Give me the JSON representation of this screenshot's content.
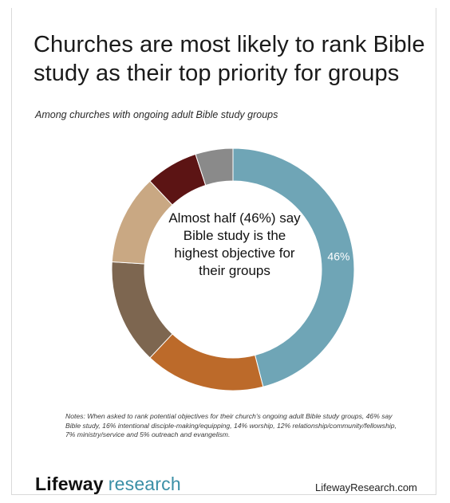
{
  "header": {
    "title": "Churches are most likely to rank Bible study as their top priority for groups",
    "subtitle": "Among churches with ongoing adult Bible study groups"
  },
  "chart_data": {
    "type": "pie",
    "style": "donut",
    "title": "Churches are most likely to rank Bible study as their top priority for groups",
    "subtitle": "Among churches with ongoing adult Bible study groups",
    "categories": [
      "Bible study",
      "intentional disciple-making/equipping",
      "worship",
      "relationship/community/fellowship",
      "ministry/service",
      "outreach and evangelism"
    ],
    "values": [
      46,
      16,
      14,
      12,
      7,
      5
    ],
    "colors": [
      "#6fa5b6",
      "#bc6a2a",
      "#7d6650",
      "#c9a883",
      "#5c1414",
      "#8a8a8a"
    ],
    "data_labels": [
      "46%",
      "",
      "",
      "",
      "",
      ""
    ],
    "center_text": "Almost half (46%) say Bible study is the highest objective for their groups"
  },
  "notes": "Notes: When asked to rank potential objectives for their church's ongoing adult Bible study groups, 46% say Bible study, 16% intentional disciple-making/equipping, 14% worship, 12% relationship/community/fellowship, 7% ministry/service and 5% outreach and evangelism.",
  "footer": {
    "brand_primary": "Lifeway",
    "brand_secondary": "research",
    "website": "LifewayResearch.com"
  }
}
